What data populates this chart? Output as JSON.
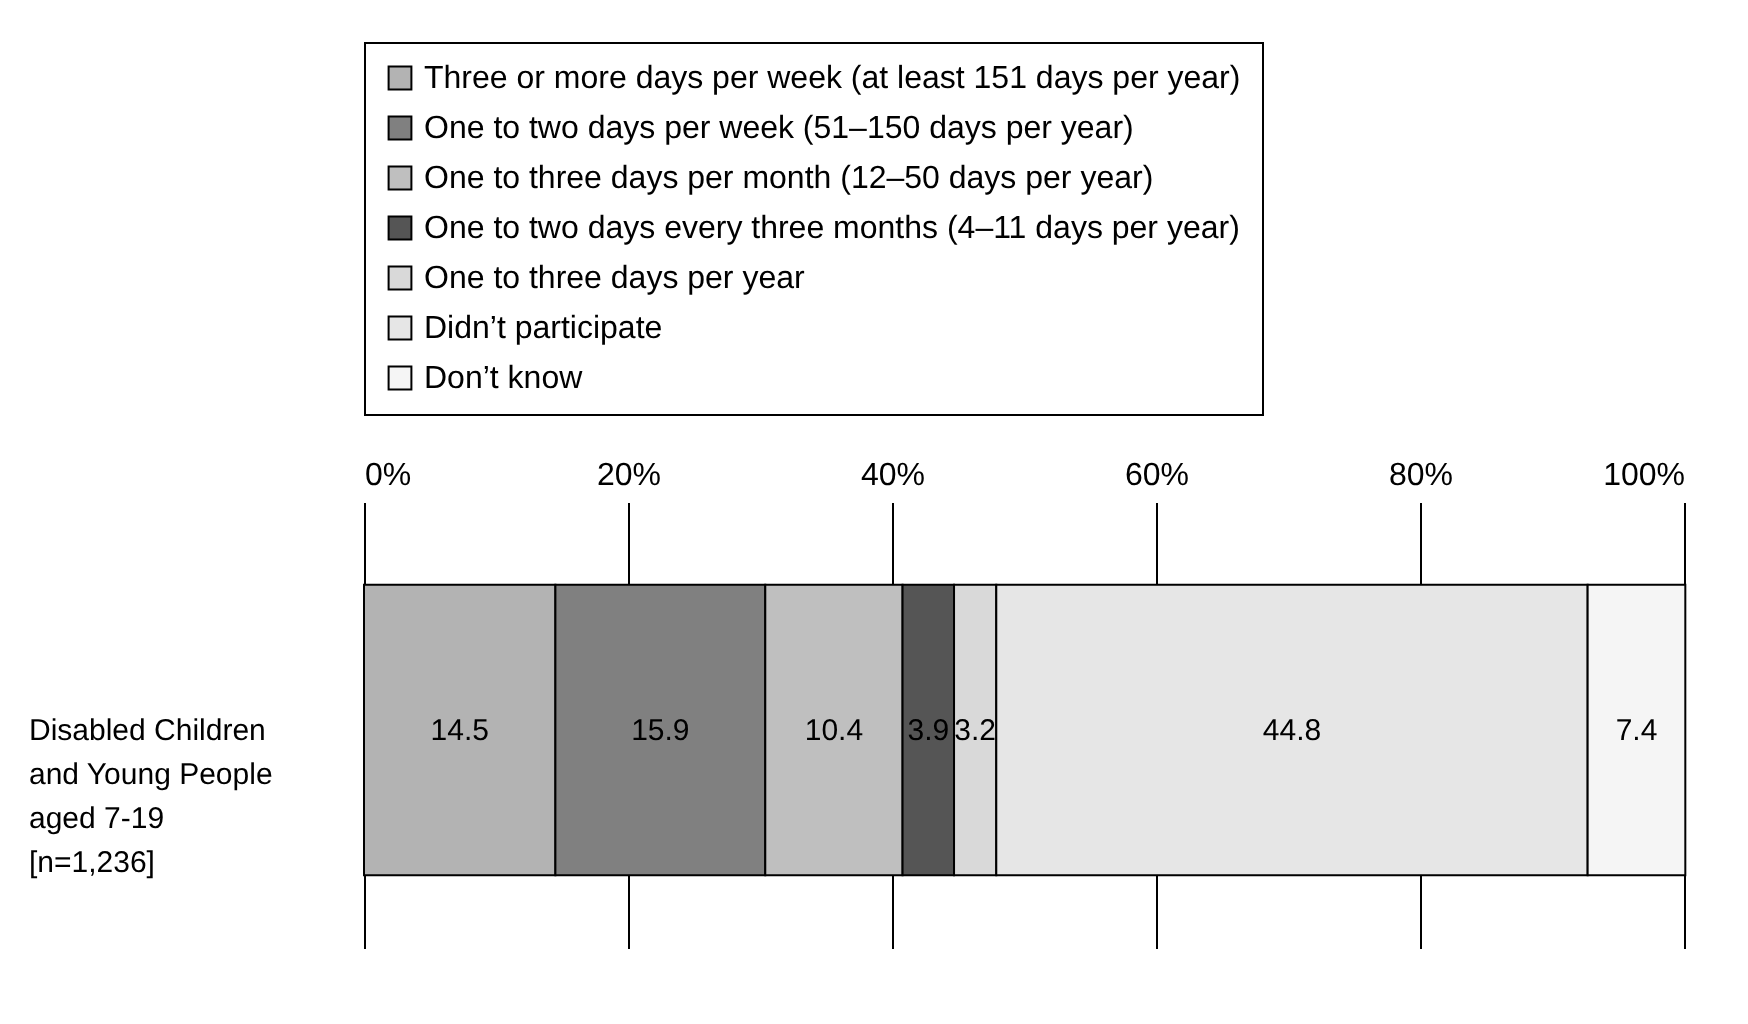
{
  "chart_data": {
    "type": "bar",
    "orientation": "horizontal",
    "stacked": true,
    "categories": [
      "Disabled Children and Young People aged 7-19 [n=1,236]"
    ],
    "series": [
      {
        "name": "Three or more days per week (at least 151 days per year)",
        "color": "#b3b3b3",
        "values": [
          14.5
        ]
      },
      {
        "name": "One to two days per week (51–150 days per year)",
        "color": "#808080",
        "values": [
          15.9
        ]
      },
      {
        "name": "One to three days per month (12–50 days per year)",
        "color": "#bfbfbf",
        "values": [
          10.4
        ]
      },
      {
        "name": "One to two days every three months (4–11 days per year)",
        "color": "#555555",
        "values": [
          3.9
        ]
      },
      {
        "name": "One to three days per year",
        "color": "#d9d9d9",
        "values": [
          3.2
        ]
      },
      {
        "name": "Didn’t participate",
        "color": "#e6e6e6",
        "values": [
          44.8
        ]
      },
      {
        "name": "Don’t know",
        "color": "#f5f5f5",
        "values": [
          7.4
        ]
      }
    ],
    "xlim": [
      0,
      100
    ],
    "xticks": [
      {
        "value": 0,
        "label": "0%"
      },
      {
        "value": 20,
        "label": "20%"
      },
      {
        "value": 40,
        "label": "40%"
      },
      {
        "value": 60,
        "label": "60%"
      },
      {
        "value": 80,
        "label": "80%"
      },
      {
        "value": 100,
        "label": "100%"
      }
    ],
    "grid": "x",
    "legend": "top",
    "data_labels": true
  }
}
